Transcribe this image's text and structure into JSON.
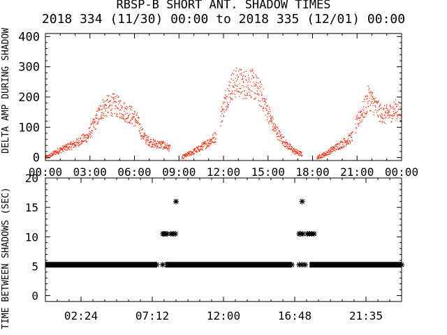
{
  "colors": {
    "background": "#ffffff",
    "axis": "#000000",
    "series_top": "#ff2200",
    "series_bottom": "#000000"
  },
  "chart_data": [
    {
      "type": "scatter",
      "title": "RBSP-B SHORT ANT. SHADOW TIMES",
      "subtitle": "2018 334 (11/30) 00:00 to 2018 335 (12/01) 00:00",
      "ylabel": "DELTA AMP DURING SHADOW",
      "xlabel": "",
      "xlim": [
        "00:00",
        "24:00"
      ],
      "ylim": [
        -10,
        410
      ],
      "yticks": [
        "0",
        "100",
        "200",
        "300",
        "400"
      ],
      "xticks": [
        "00:00",
        "03:00",
        "06:00",
        "09:00",
        "12:00",
        "15:00",
        "18:00",
        "21:00",
        "00:00"
      ],
      "grid": false,
      "legend": "none",
      "series_envelope": [
        {
          "x_hours": [
            0.0,
            0.3,
            0.6,
            1.0,
            1.5,
            2.0,
            2.5,
            2.9
          ],
          "y": [
            0,
            5,
            15,
            25,
            35,
            45,
            60,
            70
          ]
        },
        {
          "x_hours": [
            2.9,
            3.2,
            3.5,
            3.8,
            4.2,
            4.6,
            5.0,
            5.4,
            5.8,
            6.2,
            6.5,
            6.8,
            7.1,
            7.4,
            8.0,
            8.4
          ],
          "y": [
            75,
            100,
            130,
            160,
            170,
            175,
            165,
            150,
            140,
            120,
            80,
            60,
            50,
            45,
            40,
            30
          ]
        },
        {
          "x_hours": [
            9.2,
            9.8,
            10.4,
            11.0,
            11.5
          ],
          "y": [
            0,
            15,
            30,
            50,
            70
          ]
        },
        {
          "x_hours": [
            11.8,
            12.2,
            12.6,
            13.0,
            13.4,
            13.8,
            14.2,
            14.6,
            15.0,
            15.4,
            15.8,
            16.3,
            16.8,
            17.3
          ],
          "y": [
            130,
            200,
            240,
            250,
            240,
            250,
            230,
            200,
            150,
            100,
            70,
            40,
            20,
            10
          ]
        },
        {
          "x_hours": [
            18.3,
            18.8,
            19.3,
            19.8,
            20.3,
            20.7
          ],
          "y": [
            0,
            10,
            25,
            40,
            55,
            70
          ]
        },
        {
          "x_hours": [
            20.9,
            21.2,
            21.5,
            21.8,
            22.1,
            22.5,
            22.9,
            23.3,
            23.7,
            24.0
          ],
          "y": [
            100,
            140,
            160,
            200,
            180,
            150,
            140,
            150,
            160,
            140
          ]
        }
      ]
    },
    {
      "type": "scatter",
      "ylabel": "TIME BETWEEN SHADOWS (SEC)",
      "xlabel": "",
      "xlim": [
        "00:00",
        "24:00"
      ],
      "ylim": [
        -1,
        20
      ],
      "yticks": [
        "0",
        "5",
        "10",
        "15",
        "20"
      ],
      "xticks": [
        "02:24",
        "07:12",
        "12:00",
        "16:48",
        "21:35"
      ],
      "grid": false,
      "legend": "none",
      "main_band": {
        "y": 5.25,
        "x_hours_ranges": [
          [
            0.0,
            7.5
          ],
          [
            8.1,
            16.6
          ],
          [
            17.8,
            24.0
          ]
        ]
      },
      "points": [
        {
          "x_hours": 7.9,
          "y": 5.25
        },
        {
          "x_hours": 8.2,
          "y": 5.25
        },
        {
          "x_hours": 8.4,
          "y": 5.25
        },
        {
          "x_hours": 17.1,
          "y": 5.25
        },
        {
          "x_hours": 17.3,
          "y": 5.25
        },
        {
          "x_hours": 17.5,
          "y": 5.25
        },
        {
          "x_hours": 7.92,
          "y": 10.5
        },
        {
          "x_hours": 8.0,
          "y": 10.5
        },
        {
          "x_hours": 8.1,
          "y": 10.5
        },
        {
          "x_hours": 8.2,
          "y": 10.5
        },
        {
          "x_hours": 8.45,
          "y": 10.5
        },
        {
          "x_hours": 8.6,
          "y": 10.5
        },
        {
          "x_hours": 8.75,
          "y": 10.5
        },
        {
          "x_hours": 17.1,
          "y": 10.5
        },
        {
          "x_hours": 17.2,
          "y": 10.5
        },
        {
          "x_hours": 17.35,
          "y": 10.5
        },
        {
          "x_hours": 17.65,
          "y": 10.5
        },
        {
          "x_hours": 17.8,
          "y": 10.5
        },
        {
          "x_hours": 17.95,
          "y": 10.5
        },
        {
          "x_hours": 18.1,
          "y": 10.5
        },
        {
          "x_hours": 8.8,
          "y": 16.0
        },
        {
          "x_hours": 17.3,
          "y": 16.0
        }
      ]
    }
  ]
}
